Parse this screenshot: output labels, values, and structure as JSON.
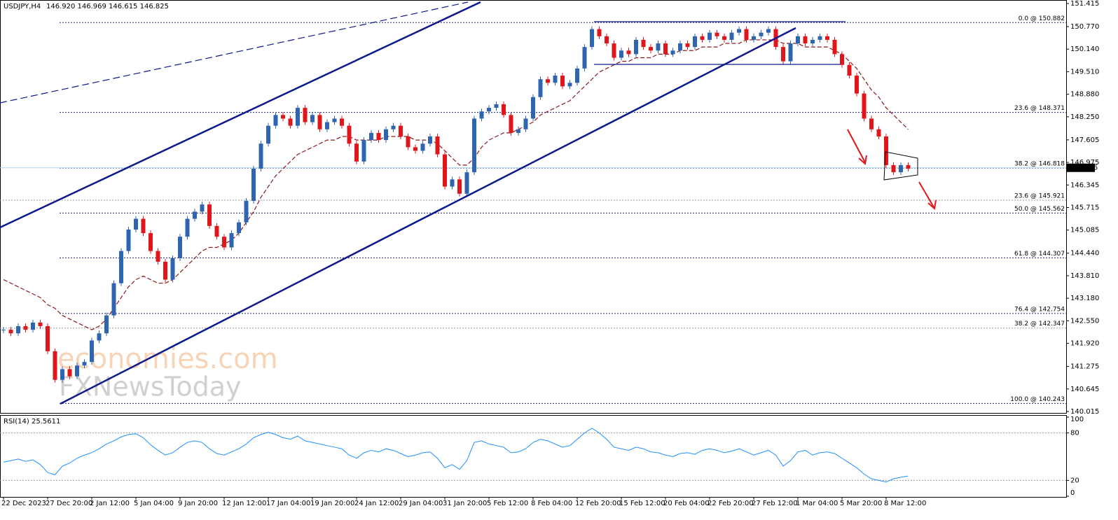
{
  "chart_data": {
    "type": "candlestick",
    "title": "USDJPY,H4",
    "quote": "146.920 146.969 146.615 146.825",
    "watermark": [
      "economies.com",
      "FXNewsToday"
    ],
    "categories": [
      "22 Dec 2023",
      null,
      null,
      null,
      null,
      null,
      "27 Dec 20:00",
      null,
      null,
      null,
      null,
      null,
      "2 Jan 12:00",
      null,
      null,
      null,
      null,
      null,
      "5 Jan 04:00",
      null,
      null,
      null,
      null,
      null,
      "9 Jan 20:00",
      null,
      null,
      null,
      null,
      null,
      "12 Jan 12:00",
      null,
      null,
      null,
      null,
      null,
      "17 Jan 04:00",
      null,
      null,
      null,
      null,
      null,
      "19 Jan 20:00",
      null,
      null,
      null,
      null,
      null,
      "24 Jan 12:00",
      null,
      null,
      null,
      null,
      null,
      "29 Jan 04:00",
      null,
      null,
      null,
      null,
      null,
      "31 Jan 20:00",
      null,
      null,
      null,
      null,
      null,
      "5 Feb 12:00",
      null,
      null,
      null,
      null,
      null,
      "8 Feb 04:00",
      null,
      null,
      null,
      null,
      null,
      "12 Feb 20:00",
      null,
      null,
      null,
      null,
      null,
      "15 Feb 12:00",
      null,
      null,
      null,
      null,
      null,
      "20 Feb 04:00",
      null,
      null,
      null,
      null,
      null,
      "22 Feb 20:00",
      null,
      null,
      null,
      null,
      null,
      "27 Feb 12:00",
      null,
      null,
      null,
      null,
      null,
      "1 Mar 04:00",
      null,
      null,
      null,
      null,
      null,
      "5 Mar 20:00",
      null,
      null,
      null,
      null,
      null,
      "8 Mar 12:00",
      null,
      null,
      null
    ],
    "close": [
      142.3,
      142.2,
      142.4,
      142.3,
      142.5,
      142.4,
      141.7,
      140.9,
      141.2,
      141.0,
      141.3,
      141.4,
      142.0,
      142.2,
      142.7,
      143.6,
      144.5,
      145.1,
      145.4,
      145.0,
      144.5,
      144.2,
      143.7,
      144.3,
      144.9,
      145.4,
      145.6,
      145.8,
      145.2,
      144.9,
      144.6,
      145.0,
      145.3,
      145.9,
      146.8,
      147.5,
      148.0,
      148.3,
      148.2,
      148.0,
      148.5,
      148.1,
      148.3,
      147.9,
      148.1,
      148.2,
      148.0,
      147.5,
      147.0,
      147.6,
      147.8,
      147.6,
      147.9,
      148.0,
      147.7,
      147.4,
      147.3,
      147.5,
      147.7,
      147.2,
      146.3,
      146.5,
      146.1,
      146.7,
      148.2,
      148.4,
      148.5,
      148.6,
      148.3,
      147.8,
      147.9,
      148.2,
      148.8,
      149.3,
      149.2,
      149.4,
      149.1,
      149.2,
      149.6,
      150.2,
      150.7,
      150.5,
      150.3,
      149.9,
      150.1,
      150.0,
      150.4,
      150.2,
      150.1,
      150.3,
      150.0,
      150.1,
      150.3,
      150.2,
      150.5,
      150.4,
      150.6,
      150.5,
      150.4,
      150.6,
      150.7,
      150.4,
      150.5,
      150.6,
      150.7,
      150.2,
      149.8,
      150.3,
      150.5,
      150.3,
      150.4,
      150.5,
      150.4,
      150.0,
      149.7,
      149.4,
      148.9,
      148.2,
      147.9,
      147.7,
      146.9,
      146.7,
      146.9,
      146.8
    ],
    "up_color": "#2f64b0",
    "down_color": "#e0161b",
    "moving_average": {
      "color": "#8b1a1a",
      "values": [
        143.7,
        143.6,
        143.5,
        143.4,
        143.3,
        143.2,
        143.0,
        142.9,
        142.7,
        142.6,
        142.5,
        142.4,
        142.3,
        142.4,
        142.6,
        142.9,
        143.2,
        143.5,
        143.7,
        143.8,
        143.7,
        143.6,
        143.6,
        143.7,
        143.9,
        144.1,
        144.3,
        144.5,
        144.6,
        144.6,
        144.7,
        144.8,
        145.0,
        145.3,
        145.6,
        146.0,
        146.3,
        146.6,
        146.8,
        147.0,
        147.2,
        147.3,
        147.4,
        147.5,
        147.6,
        147.6,
        147.7,
        147.7,
        147.6,
        147.6,
        147.6,
        147.6,
        147.7,
        147.7,
        147.7,
        147.7,
        147.6,
        147.6,
        147.6,
        147.5,
        147.3,
        147.1,
        146.9,
        146.9,
        147.1,
        147.4,
        147.6,
        147.7,
        147.8,
        147.8,
        147.9,
        148.0,
        148.1,
        148.3,
        148.4,
        148.5,
        148.6,
        148.7,
        148.9,
        149.1,
        149.3,
        149.5,
        149.6,
        149.7,
        149.8,
        149.8,
        149.9,
        149.9,
        149.9,
        150.0,
        150.0,
        150.0,
        150.1,
        150.1,
        150.1,
        150.2,
        150.2,
        150.2,
        150.3,
        150.3,
        150.3,
        150.4,
        150.4,
        150.4,
        150.4,
        150.4,
        150.3,
        150.3,
        150.3,
        150.2,
        150.2,
        150.2,
        150.2,
        150.1,
        150.0,
        149.8,
        149.6,
        149.3,
        149.0,
        148.8,
        148.5,
        148.3,
        148.1,
        147.9
      ]
    },
    "ylim": [
      139.976,
      151.513
    ],
    "yticks": [
      {
        "value": 151.415,
        "label": "151.415"
      },
      {
        "value": 150.77,
        "label": "150.770"
      },
      {
        "value": 150.14,
        "label": "150.140"
      },
      {
        "value": 149.51,
        "label": "149.510"
      },
      {
        "value": 148.88,
        "label": "148.880"
      },
      {
        "value": 148.25,
        "label": "148.250"
      },
      {
        "value": 147.605,
        "label": "147.605"
      },
      {
        "value": 146.975,
        "label": "146.975"
      },
      {
        "value": 146.345,
        "label": "146.345"
      },
      {
        "value": 145.715,
        "label": "145.715"
      },
      {
        "value": 145.085,
        "label": "145.085"
      },
      {
        "value": 144.44,
        "label": "144.440"
      },
      {
        "value": 143.81,
        "label": "143.810"
      },
      {
        "value": 143.18,
        "label": "143.180"
      },
      {
        "value": 142.55,
        "label": "142.550"
      },
      {
        "value": 141.92,
        "label": "141.920"
      },
      {
        "value": 141.275,
        "label": "141.275"
      },
      {
        "value": 140.645,
        "label": "140.645"
      },
      {
        "value": 140.015,
        "label": "140.015"
      }
    ],
    "last_price": 146.825,
    "levels": [
      {
        "label": "0.0 @ 150.882",
        "value": 150.882,
        "color": "#1a237e"
      },
      {
        "label": "23.6 @ 148.371",
        "value": 148.371,
        "color": "#1a237e"
      },
      {
        "label": "38.2 @ 146.818",
        "value": 146.818,
        "color": "#1a237e"
      },
      {
        "label": "23.6 @ 145.921",
        "value": 145.921,
        "color": "#9a9a9a"
      },
      {
        "label": "50.0 @ 145.562",
        "value": 145.562,
        "color": "#1a237e"
      },
      {
        "label": "61.8 @ 144.307",
        "value": 144.307,
        "color": "#1a237e"
      },
      {
        "label": "76.4 @ 142.754",
        "value": 142.754,
        "color": "#1a237e"
      },
      {
        "label": "38.2 @ 142.347",
        "value": 142.347,
        "color": "#9a9a9a"
      },
      {
        "label": "100.0 @ 140.243",
        "value": 140.243,
        "color": "#1a237e"
      }
    ],
    "rsi": {
      "title": "RSI(14) 25.5611",
      "color": "#1e90ff",
      "ylim": [
        0,
        100
      ],
      "yticks": [
        100,
        80,
        20,
        0
      ],
      "levels": [
        80,
        20
      ],
      "values": [
        43,
        45,
        47,
        44,
        46,
        40,
        30,
        27,
        38,
        42,
        48,
        52,
        55,
        60,
        66,
        70,
        75,
        78,
        79,
        74,
        65,
        58,
        52,
        55,
        62,
        68,
        70,
        68,
        60,
        54,
        52,
        56,
        60,
        66,
        74,
        78,
        81,
        78,
        74,
        72,
        76,
        70,
        68,
        66,
        64,
        62,
        60,
        52,
        48,
        55,
        58,
        56,
        60,
        58,
        54,
        50,
        52,
        55,
        56,
        48,
        36,
        40,
        34,
        45,
        68,
        70,
        66,
        64,
        62,
        55,
        56,
        60,
        68,
        72,
        70,
        66,
        62,
        64,
        72,
        80,
        86,
        80,
        72,
        62,
        60,
        58,
        62,
        60,
        56,
        55,
        52,
        50,
        54,
        55,
        53,
        58,
        60,
        58,
        55,
        57,
        60,
        56,
        52,
        55,
        58,
        52,
        38,
        45,
        56,
        58,
        52,
        55,
        56,
        54,
        48,
        42,
        36,
        28,
        22,
        20,
        18,
        22,
        24,
        25.6
      ]
    }
  }
}
